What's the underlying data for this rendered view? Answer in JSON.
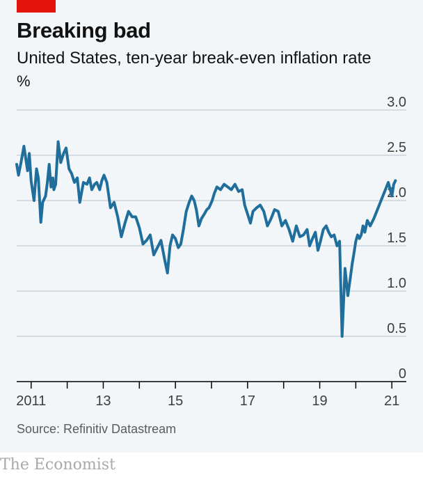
{
  "chart_data": {
    "type": "line",
    "title": "Breaking bad",
    "subtitle": "United States, ten-year break-even inflation rate",
    "ylabel": "%",
    "xlabel": "",
    "ylim": [
      0,
      3.0
    ],
    "xlim": [
      2010.6,
      2021.4
    ],
    "y_ticks": [
      {
        "value": 0,
        "label": "0"
      },
      {
        "value": 0.5,
        "label": "0.5"
      },
      {
        "value": 1.0,
        "label": "1.0"
      },
      {
        "value": 1.5,
        "label": "1.5"
      },
      {
        "value": 2.0,
        "label": "2.0"
      },
      {
        "value": 2.5,
        "label": "2.5"
      },
      {
        "value": 3.0,
        "label": "3.0"
      }
    ],
    "x_ticks": [
      {
        "value": 2011,
        "label": "2011"
      },
      {
        "value": 2012,
        "label": ""
      },
      {
        "value": 2013,
        "label": "13"
      },
      {
        "value": 2014,
        "label": ""
      },
      {
        "value": 2015,
        "label": "15"
      },
      {
        "value": 2016,
        "label": ""
      },
      {
        "value": 2017,
        "label": "17"
      },
      {
        "value": 2018,
        "label": ""
      },
      {
        "value": 2019,
        "label": "19"
      },
      {
        "value": 2020,
        "label": ""
      },
      {
        "value": 2021,
        "label": "21"
      }
    ],
    "grid": true,
    "line_color": "#1f6e9c",
    "series": [
      {
        "name": "",
        "x": [
          2010.6,
          2010.65,
          2010.72,
          2010.8,
          2010.9,
          2010.95,
          2011.0,
          2011.08,
          2011.15,
          2011.2,
          2011.27,
          2011.32,
          2011.4,
          2011.45,
          2011.5,
          2011.55,
          2011.6,
          2011.63,
          2011.68,
          2011.75,
          2011.82,
          2011.9,
          2011.97,
          2012.05,
          2012.12,
          2012.2,
          2012.28,
          2012.35,
          2012.45,
          2012.55,
          2012.62,
          2012.68,
          2012.76,
          2012.82,
          2012.9,
          2012.96,
          2013.02,
          2013.1,
          2013.2,
          2013.3,
          2013.4,
          2013.5,
          2013.6,
          2013.7,
          2013.8,
          2013.9,
          2014.0,
          2014.1,
          2014.2,
          2014.3,
          2014.4,
          2014.5,
          2014.6,
          2014.7,
          2014.78,
          2014.85,
          2014.92,
          2015.0,
          2015.08,
          2015.15,
          2015.22,
          2015.3,
          2015.38,
          2015.45,
          2015.52,
          2015.58,
          2015.65,
          2015.72,
          2015.8,
          2015.87,
          2015.93,
          2016.02,
          2016.08,
          2016.15,
          2016.25,
          2016.35,
          2016.45,
          2016.55,
          2016.65,
          2016.75,
          2016.85,
          2016.92,
          2017.0,
          2017.08,
          2017.15,
          2017.25,
          2017.35,
          2017.45,
          2017.55,
          2017.65,
          2017.75,
          2017.85,
          2017.95,
          2018.05,
          2018.15,
          2018.25,
          2018.35,
          2018.45,
          2018.55,
          2018.65,
          2018.72,
          2018.8,
          2018.88,
          2018.95,
          2019.02,
          2019.1,
          2019.18,
          2019.25,
          2019.32,
          2019.4,
          2019.48,
          2019.55,
          2019.62,
          2019.7,
          2019.78,
          2019.85,
          2019.9,
          2019.95,
          2020.0,
          2020.05,
          2020.1,
          2020.15,
          2020.2,
          2020.25,
          2020.32,
          2020.4,
          2020.5,
          2020.6,
          2020.7,
          2020.8,
          2020.9,
          2021.0,
          2021.05,
          2021.1
        ],
        "y": [
          2.4,
          2.28,
          2.42,
          2.6,
          2.33,
          2.52,
          2.22,
          2.0,
          2.35,
          2.25,
          1.76,
          1.98,
          2.05,
          2.2,
          2.4,
          2.15,
          2.25,
          2.12,
          2.18,
          2.65,
          2.42,
          2.52,
          2.58,
          2.35,
          2.3,
          2.2,
          2.25,
          1.98,
          2.2,
          2.18,
          2.25,
          2.12,
          2.18,
          2.2,
          2.12,
          2.22,
          2.28,
          2.2,
          1.92,
          1.98,
          1.82,
          1.6,
          1.75,
          1.88,
          1.82,
          1.82,
          1.7,
          1.52,
          1.56,
          1.62,
          1.4,
          1.48,
          1.56,
          1.35,
          1.2,
          1.5,
          1.62,
          1.58,
          1.48,
          1.52,
          1.68,
          1.88,
          1.98,
          2.05,
          2.0,
          1.9,
          1.72,
          1.8,
          1.85,
          1.9,
          1.92,
          2.0,
          2.08,
          2.15,
          2.12,
          2.18,
          2.15,
          2.12,
          2.18,
          2.1,
          2.12,
          1.95,
          1.85,
          1.75,
          1.88,
          1.92,
          1.95,
          1.88,
          1.72,
          1.8,
          1.9,
          1.88,
          1.72,
          1.78,
          1.68,
          1.55,
          1.72,
          1.6,
          1.62,
          1.68,
          1.5,
          1.58,
          1.65,
          1.45,
          1.55,
          1.68,
          1.72,
          1.65,
          1.6,
          1.62,
          1.5,
          1.55,
          0.5,
          1.25,
          0.95,
          1.15,
          1.3,
          1.42,
          1.55,
          1.62,
          1.58,
          1.62,
          1.72,
          1.65,
          1.78,
          1.72,
          1.8,
          1.9,
          2.0,
          2.1,
          2.2,
          2.05,
          2.18,
          2.22
        ]
      }
    ]
  },
  "source": "Source: Refinitiv Datastream",
  "brand": "The Economist",
  "colors": {
    "panel_bg": "#f2f6f8",
    "accent_red": "#e3120b",
    "line": "#1f6e9c",
    "grid": "#b7c3ca",
    "axis": "#000000"
  }
}
